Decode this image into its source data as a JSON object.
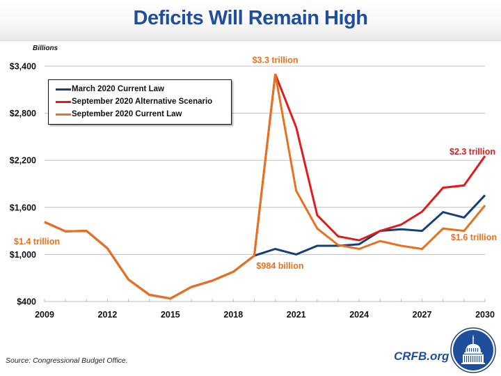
{
  "title": "Deficits Will Remain High",
  "source": "Source: Congressional Budget Office.",
  "brand": "CRFB.org",
  "logo_icon": "capitol-dome-seal-icon",
  "colors": {
    "title": "#1f4e9c",
    "march_2020_current_law": "#163f75",
    "september_2020_alternative": "#e31a1c",
    "september_2020_current_law": "#e8711f",
    "gridline": "#bfbfbf"
  },
  "chart_data": {
    "type": "line",
    "title": "Deficits Will Remain High",
    "xlabel": "",
    "ylabel": "Billions",
    "x": [
      2009,
      2010,
      2011,
      2012,
      2013,
      2014,
      2015,
      2016,
      2017,
      2018,
      2019,
      2020,
      2021,
      2022,
      2023,
      2024,
      2025,
      2026,
      2027,
      2028,
      2029,
      2030
    ],
    "xlim": [
      2009,
      2030
    ],
    "ylim": [
      400,
      3400
    ],
    "x_ticks": [
      "2009",
      "2012",
      "2015",
      "2018",
      "2021",
      "2024",
      "2027",
      "2030"
    ],
    "y_ticks": [
      "$400",
      "$1,000",
      "$1,600",
      "$2,200",
      "$2,800",
      "$3,400"
    ],
    "y_tick_values": [
      400,
      1000,
      1600,
      2200,
      2800,
      3400
    ],
    "grid": true,
    "legend_position": "top-left",
    "series": [
      {
        "name": "March 2020 Current Law",
        "color": "#163f75",
        "values": [
          1413,
          1294,
          1300,
          1077,
          680,
          485,
          438,
          585,
          665,
          779,
          984,
          1070,
          1000,
          1110,
          1110,
          1130,
          1300,
          1320,
          1300,
          1540,
          1470,
          1755
        ]
      },
      {
        "name": "September 2020 Alternative Scenario",
        "color": "#e31a1c",
        "values": [
          1413,
          1294,
          1300,
          1077,
          680,
          485,
          438,
          585,
          665,
          779,
          984,
          3300,
          2620,
          1500,
          1230,
          1180,
          1300,
          1380,
          1545,
          1850,
          1880,
          2255
        ]
      },
      {
        "name": "September 2020 Current Law",
        "color": "#e8711f",
        "values": [
          1413,
          1294,
          1300,
          1077,
          680,
          485,
          438,
          585,
          665,
          779,
          984,
          3300,
          1810,
          1330,
          1120,
          1070,
          1170,
          1110,
          1070,
          1330,
          1300,
          1625
        ]
      }
    ],
    "annotations": [
      {
        "text": "$1.4 trillion",
        "x": 2009,
        "y": 1413,
        "color": "#e8711f"
      },
      {
        "text": "$984 billion",
        "x": 2019,
        "y": 984,
        "color": "#e8711f"
      },
      {
        "text": "$3.3 trillion",
        "x": 2020,
        "y": 3300,
        "color": "#e8711f"
      },
      {
        "text": "$2.3 trillion",
        "x": 2030,
        "y": 2255,
        "color": "#e31a1c"
      },
      {
        "text": "$1.6 trillion",
        "x": 2030,
        "y": 1625,
        "color": "#e8711f"
      }
    ]
  }
}
